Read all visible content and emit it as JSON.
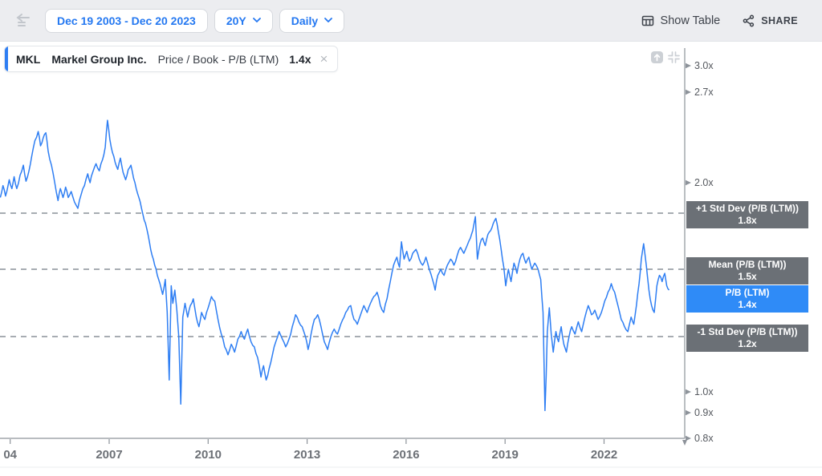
{
  "toolbar": {
    "date_range": "Dec 19 2003 - Dec 20 2023",
    "period": "20Y",
    "frequency": "Daily",
    "show_table": "Show Table",
    "share": "SHARE"
  },
  "legend": {
    "ticker": "MKL",
    "company": "Markel Group Inc.",
    "metric": "Price / Book - P/B (LTM)",
    "value": "1.4x"
  },
  "colors": {
    "accent_blue": "#2478f1",
    "line_blue": "#2e7ef3",
    "badge_blue": "#2f8bf7",
    "badge_gray": "#6b7076",
    "axis_gray": "#8d939a",
    "dash_gray": "#9ba1a8"
  },
  "overlays": [
    {
      "label": "+1 Std Dev (P/B (LTM))",
      "value": "1.8x",
      "y_value": 1.8,
      "style": "gray"
    },
    {
      "label": "Mean (P/B (LTM))",
      "value": "1.5x",
      "y_value": 1.5,
      "style": "gray"
    },
    {
      "label": "P/B (LTM)",
      "value": "1.4x",
      "y_value": 1.4,
      "style": "blue"
    },
    {
      "label": "-1 Std Dev (P/B (LTM))",
      "value": "1.2x",
      "y_value": 1.2,
      "style": "gray"
    }
  ],
  "chart_data": {
    "type": "line",
    "title": "MKL Markel Group Inc. Price / Book - P/B (LTM)",
    "x_unit": "decimal_year",
    "x_range": [
      2003.7,
      2023.97
    ],
    "y_scale": "log",
    "grid": "dashed reference lines only",
    "y_ticks": [
      {
        "label": "3.0x",
        "value": 3.0
      },
      {
        "label": "2.7x",
        "value": 2.7
      },
      {
        "label": "2.0x",
        "value": 2.0
      },
      {
        "label": "1.0x",
        "value": 1.0
      },
      {
        "label": "0.9x",
        "value": 0.9
      },
      {
        "label": "0.8x",
        "value": 0.8
      }
    ],
    "x_ticks": [
      {
        "label": "04",
        "year": 2004
      },
      {
        "label": "2007",
        "year": 2007
      },
      {
        "label": "2010",
        "year": 2010
      },
      {
        "label": "2013",
        "year": 2013
      },
      {
        "label": "2016",
        "year": 2016
      },
      {
        "label": "2019",
        "year": 2019
      },
      {
        "label": "2022",
        "year": 2022
      }
    ],
    "reference_lines": [
      {
        "name": "+1 Std Dev (P/B (LTM))",
        "value": 1.8
      },
      {
        "name": "Mean (P/B (LTM))",
        "value": 1.5
      },
      {
        "name": "-1 Std Dev (P/B (LTM))",
        "value": 1.2
      }
    ],
    "last_value": 1.4,
    "series": [
      {
        "name": "P/B (LTM)",
        "color": "#2e7ef3",
        "points": [
          [
            2003.7,
            1.9
          ],
          [
            2003.78,
            1.98
          ],
          [
            2003.86,
            1.91
          ],
          [
            2003.97,
            2.02
          ],
          [
            2004.05,
            1.96
          ],
          [
            2004.12,
            2.04
          ],
          [
            2004.2,
            1.96
          ],
          [
            2004.3,
            2.05
          ],
          [
            2004.4,
            2.12
          ],
          [
            2004.48,
            2.01
          ],
          [
            2004.57,
            2.08
          ],
          [
            2004.65,
            2.18
          ],
          [
            2004.75,
            2.3
          ],
          [
            2004.85,
            2.37
          ],
          [
            2004.92,
            2.26
          ],
          [
            2005.0,
            2.32
          ],
          [
            2005.08,
            2.36
          ],
          [
            2005.15,
            2.22
          ],
          [
            2005.25,
            2.12
          ],
          [
            2005.35,
            2.0
          ],
          [
            2005.45,
            1.88
          ],
          [
            2005.52,
            1.96
          ],
          [
            2005.6,
            1.9
          ],
          [
            2005.68,
            1.97
          ],
          [
            2005.76,
            1.9
          ],
          [
            2005.85,
            1.94
          ],
          [
            2005.95,
            1.87
          ],
          [
            2006.05,
            1.83
          ],
          [
            2006.15,
            1.92
          ],
          [
            2006.25,
            1.98
          ],
          [
            2006.35,
            2.06
          ],
          [
            2006.42,
            2.0
          ],
          [
            2006.5,
            2.07
          ],
          [
            2006.6,
            2.13
          ],
          [
            2006.7,
            2.08
          ],
          [
            2006.8,
            2.16
          ],
          [
            2006.88,
            2.25
          ],
          [
            2006.95,
            2.46
          ],
          [
            2007.02,
            2.31
          ],
          [
            2007.1,
            2.21
          ],
          [
            2007.18,
            2.14
          ],
          [
            2007.26,
            2.09
          ],
          [
            2007.34,
            2.17
          ],
          [
            2007.42,
            2.07
          ],
          [
            2007.5,
            2.02
          ],
          [
            2007.58,
            2.09
          ],
          [
            2007.66,
            2.12
          ],
          [
            2007.74,
            2.03
          ],
          [
            2007.82,
            1.96
          ],
          [
            2007.9,
            1.9
          ],
          [
            2007.98,
            1.83
          ],
          [
            2008.06,
            1.76
          ],
          [
            2008.14,
            1.71
          ],
          [
            2008.22,
            1.64
          ],
          [
            2008.3,
            1.57
          ],
          [
            2008.38,
            1.52
          ],
          [
            2008.46,
            1.47
          ],
          [
            2008.54,
            1.43
          ],
          [
            2008.62,
            1.38
          ],
          [
            2008.7,
            1.45
          ],
          [
            2008.76,
            1.3
          ],
          [
            2008.82,
            1.04
          ],
          [
            2008.88,
            1.42
          ],
          [
            2008.93,
            1.34
          ],
          [
            2008.99,
            1.4
          ],
          [
            2009.05,
            1.31
          ],
          [
            2009.11,
            1.2
          ],
          [
            2009.17,
            0.94
          ],
          [
            2009.23,
            1.28
          ],
          [
            2009.3,
            1.34
          ],
          [
            2009.38,
            1.28
          ],
          [
            2009.46,
            1.33
          ],
          [
            2009.55,
            1.36
          ],
          [
            2009.64,
            1.28
          ],
          [
            2009.72,
            1.24
          ],
          [
            2009.8,
            1.3
          ],
          [
            2009.9,
            1.27
          ],
          [
            2010.0,
            1.32
          ],
          [
            2010.1,
            1.37
          ],
          [
            2010.2,
            1.35
          ],
          [
            2010.3,
            1.27
          ],
          [
            2010.4,
            1.21
          ],
          [
            2010.5,
            1.16
          ],
          [
            2010.6,
            1.13
          ],
          [
            2010.7,
            1.17
          ],
          [
            2010.8,
            1.14
          ],
          [
            2010.9,
            1.19
          ],
          [
            2011.0,
            1.22
          ],
          [
            2011.1,
            1.19
          ],
          [
            2011.2,
            1.23
          ],
          [
            2011.3,
            1.18
          ],
          [
            2011.4,
            1.16
          ],
          [
            2011.5,
            1.12
          ],
          [
            2011.6,
            1.05
          ],
          [
            2011.68,
            1.09
          ],
          [
            2011.76,
            1.04
          ],
          [
            2011.85,
            1.08
          ],
          [
            2011.95,
            1.13
          ],
          [
            2012.05,
            1.18
          ],
          [
            2012.15,
            1.22
          ],
          [
            2012.25,
            1.19
          ],
          [
            2012.35,
            1.16
          ],
          [
            2012.45,
            1.19
          ],
          [
            2012.55,
            1.24
          ],
          [
            2012.65,
            1.29
          ],
          [
            2012.75,
            1.26
          ],
          [
            2012.85,
            1.24
          ],
          [
            2012.95,
            1.2
          ],
          [
            2013.03,
            1.15
          ],
          [
            2013.12,
            1.21
          ],
          [
            2013.22,
            1.27
          ],
          [
            2013.32,
            1.29
          ],
          [
            2013.42,
            1.24
          ],
          [
            2013.52,
            1.18
          ],
          [
            2013.62,
            1.15
          ],
          [
            2013.72,
            1.2
          ],
          [
            2013.82,
            1.23
          ],
          [
            2013.92,
            1.21
          ],
          [
            2014.02,
            1.25
          ],
          [
            2014.12,
            1.28
          ],
          [
            2014.22,
            1.31
          ],
          [
            2014.32,
            1.33
          ],
          [
            2014.42,
            1.27
          ],
          [
            2014.52,
            1.25
          ],
          [
            2014.62,
            1.29
          ],
          [
            2014.72,
            1.33
          ],
          [
            2014.82,
            1.3
          ],
          [
            2014.92,
            1.34
          ],
          [
            2015.02,
            1.37
          ],
          [
            2015.12,
            1.39
          ],
          [
            2015.22,
            1.33
          ],
          [
            2015.32,
            1.3
          ],
          [
            2015.42,
            1.36
          ],
          [
            2015.52,
            1.44
          ],
          [
            2015.62,
            1.52
          ],
          [
            2015.72,
            1.56
          ],
          [
            2015.8,
            1.51
          ],
          [
            2015.86,
            1.64
          ],
          [
            2015.94,
            1.55
          ],
          [
            2016.02,
            1.59
          ],
          [
            2016.1,
            1.54
          ],
          [
            2016.2,
            1.58
          ],
          [
            2016.3,
            1.6
          ],
          [
            2016.4,
            1.55
          ],
          [
            2016.5,
            1.52
          ],
          [
            2016.6,
            1.56
          ],
          [
            2016.7,
            1.5
          ],
          [
            2016.8,
            1.45
          ],
          [
            2016.88,
            1.4
          ],
          [
            2016.96,
            1.47
          ],
          [
            2017.05,
            1.5
          ],
          [
            2017.15,
            1.47
          ],
          [
            2017.25,
            1.52
          ],
          [
            2017.35,
            1.55
          ],
          [
            2017.45,
            1.52
          ],
          [
            2017.55,
            1.57
          ],
          [
            2017.65,
            1.61
          ],
          [
            2017.75,
            1.58
          ],
          [
            2017.85,
            1.62
          ],
          [
            2017.95,
            1.66
          ],
          [
            2018.02,
            1.7
          ],
          [
            2018.1,
            1.78
          ],
          [
            2018.16,
            1.55
          ],
          [
            2018.24,
            1.63
          ],
          [
            2018.32,
            1.66
          ],
          [
            2018.4,
            1.62
          ],
          [
            2018.48,
            1.68
          ],
          [
            2018.56,
            1.7
          ],
          [
            2018.64,
            1.74
          ],
          [
            2018.72,
            1.77
          ],
          [
            2018.8,
            1.69
          ],
          [
            2018.88,
            1.6
          ],
          [
            2018.96,
            1.51
          ],
          [
            2019.02,
            1.42
          ],
          [
            2019.1,
            1.5
          ],
          [
            2019.18,
            1.44
          ],
          [
            2019.27,
            1.53
          ],
          [
            2019.36,
            1.48
          ],
          [
            2019.45,
            1.55
          ],
          [
            2019.54,
            1.58
          ],
          [
            2019.63,
            1.53
          ],
          [
            2019.72,
            1.56
          ],
          [
            2019.81,
            1.5
          ],
          [
            2019.9,
            1.53
          ],
          [
            2020.0,
            1.5
          ],
          [
            2020.08,
            1.45
          ],
          [
            2020.15,
            1.3
          ],
          [
            2020.21,
            0.91
          ],
          [
            2020.28,
            1.22
          ],
          [
            2020.34,
            1.32
          ],
          [
            2020.4,
            1.21
          ],
          [
            2020.46,
            1.14
          ],
          [
            2020.54,
            1.22
          ],
          [
            2020.62,
            1.18
          ],
          [
            2020.7,
            1.24
          ],
          [
            2020.78,
            1.17
          ],
          [
            2020.86,
            1.14
          ],
          [
            2020.94,
            1.2
          ],
          [
            2021.02,
            1.24
          ],
          [
            2021.12,
            1.21
          ],
          [
            2021.22,
            1.26
          ],
          [
            2021.32,
            1.22
          ],
          [
            2021.42,
            1.28
          ],
          [
            2021.52,
            1.33
          ],
          [
            2021.62,
            1.29
          ],
          [
            2021.72,
            1.31
          ],
          [
            2021.82,
            1.27
          ],
          [
            2021.92,
            1.3
          ],
          [
            2022.02,
            1.35
          ],
          [
            2022.12,
            1.39
          ],
          [
            2022.22,
            1.43
          ],
          [
            2022.32,
            1.39
          ],
          [
            2022.42,
            1.33
          ],
          [
            2022.52,
            1.27
          ],
          [
            2022.62,
            1.24
          ],
          [
            2022.72,
            1.22
          ],
          [
            2022.82,
            1.28
          ],
          [
            2022.9,
            1.25
          ],
          [
            2022.98,
            1.33
          ],
          [
            2023.06,
            1.43
          ],
          [
            2023.13,
            1.55
          ],
          [
            2023.2,
            1.63
          ],
          [
            2023.28,
            1.52
          ],
          [
            2023.36,
            1.4
          ],
          [
            2023.44,
            1.33
          ],
          [
            2023.52,
            1.3
          ],
          [
            2023.6,
            1.42
          ],
          [
            2023.68,
            1.47
          ],
          [
            2023.76,
            1.44
          ],
          [
            2023.84,
            1.48
          ],
          [
            2023.9,
            1.42
          ],
          [
            2023.97,
            1.4
          ]
        ]
      }
    ]
  }
}
